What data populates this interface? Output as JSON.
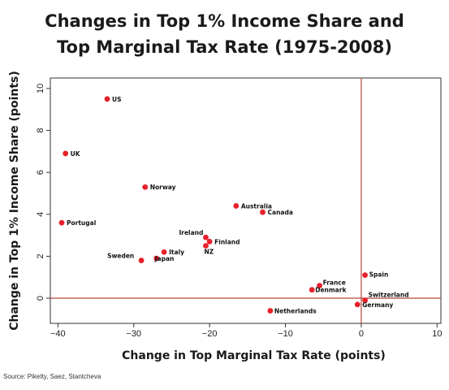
{
  "chart_data": {
    "type": "scatter",
    "title_lines": [
      "Changes in Top 1% Income Share and",
      "Top Marginal Tax Rate (1975-2008)"
    ],
    "xlabel": "Change in Top Marginal Tax Rate (points)",
    "ylabel": "Change in Top 1% Income Share (points)",
    "xlim": [
      -41,
      10.5
    ],
    "ylim": [
      -1.2,
      10.5
    ],
    "xticks": [
      -40,
      -30,
      -20,
      -10,
      0,
      10
    ],
    "yticks": [
      0,
      2,
      4,
      6,
      8,
      10
    ],
    "reference_lines": {
      "x": 0,
      "y": 0
    },
    "grid": false,
    "legend": "none",
    "points": [
      {
        "label": "US",
        "x": -33.5,
        "y": 9.5
      },
      {
        "label": "UK",
        "x": -39,
        "y": 6.9
      },
      {
        "label": "Norway",
        "x": -28.5,
        "y": 5.3
      },
      {
        "label": "Australia",
        "x": -16.5,
        "y": 4.4
      },
      {
        "label": "Canada",
        "x": -13,
        "y": 4.1
      },
      {
        "label": "Portugal",
        "x": -39.5,
        "y": 3.6
      },
      {
        "label": "Ireland",
        "x": -20.5,
        "y": 2.9
      },
      {
        "label": "Finland",
        "x": -20,
        "y": 2.7
      },
      {
        "label": "NZ",
        "x": -20.5,
        "y": 2.5
      },
      {
        "label": "Sweden",
        "x": -29,
        "y": 1.8
      },
      {
        "label": "Italy",
        "x": -26,
        "y": 2.2
      },
      {
        "label": "Japan",
        "x": -27,
        "y": 1.9
      },
      {
        "label": "Spain",
        "x": 0.5,
        "y": 1.1
      },
      {
        "label": "France",
        "x": -5.5,
        "y": 0.6
      },
      {
        "label": "Denmark",
        "x": -6.5,
        "y": 0.4
      },
      {
        "label": "Switzerland",
        "x": 0.5,
        "y": -0.1
      },
      {
        "label": "Germany",
        "x": -0.5,
        "y": -0.3
      },
      {
        "label": "Netherlands",
        "x": -12,
        "y": -0.6
      }
    ],
    "colors": {
      "point": "#e8202a",
      "reference_line": "#b5473c",
      "axis": "#333333"
    }
  },
  "source_text": "Source: Piketty, Saez, Stantcheva"
}
